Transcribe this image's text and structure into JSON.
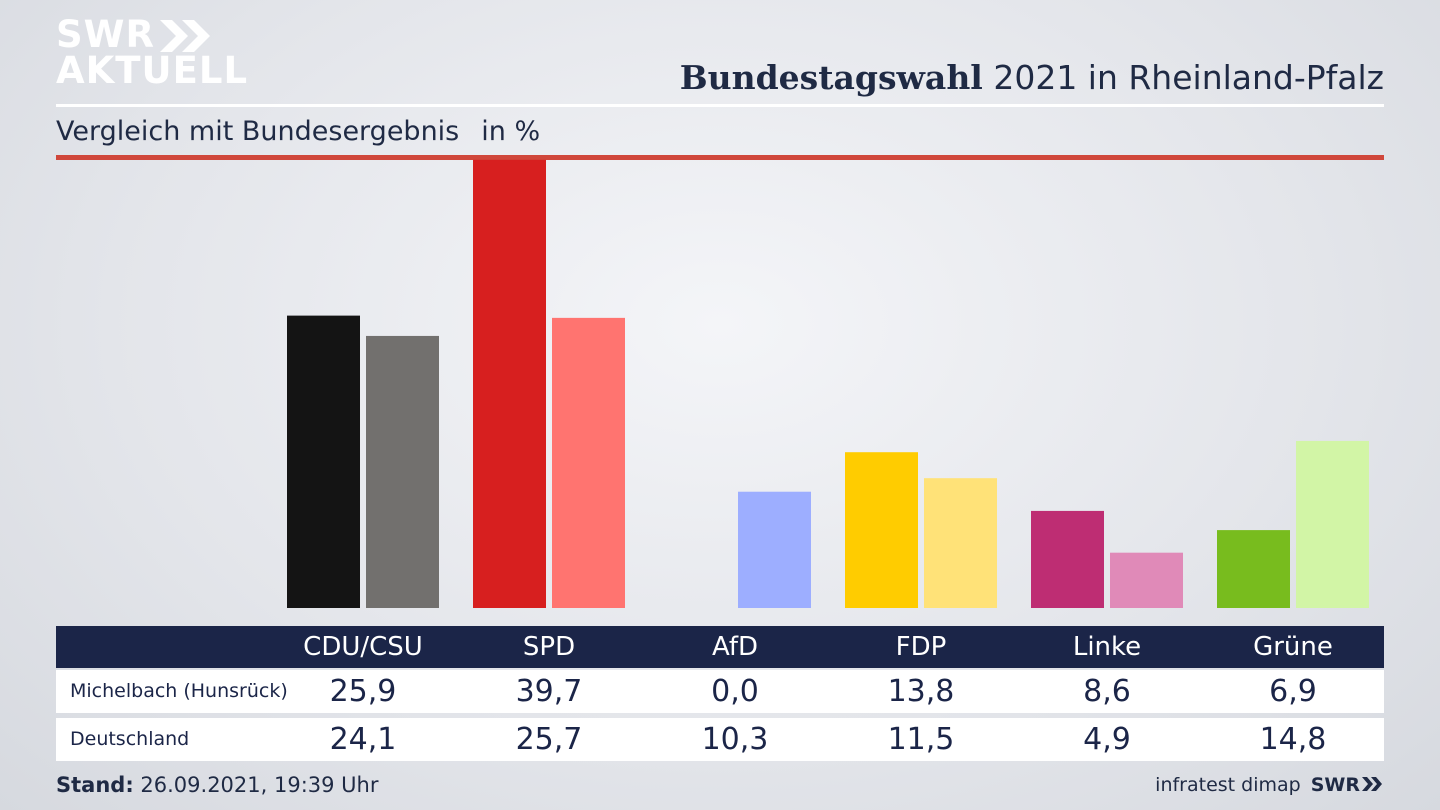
{
  "logo": {
    "line1": "SWR",
    "line2": "AKTUELL"
  },
  "header": {
    "title_bold": "Bundestagswahl",
    "title_rest": " 2021 in Rheinland-Pfalz",
    "subtitle": "Vergleich mit Bundesergebnis",
    "unit": "in %"
  },
  "chart_data": {
    "type": "bar",
    "categories": [
      "CDU/CSU",
      "SPD",
      "AfD",
      "FDP",
      "Linke",
      "Grüne"
    ],
    "series": [
      {
        "name": "Michelbach (Hunsrück)",
        "values": [
          25.9,
          39.7,
          0.0,
          13.8,
          8.6,
          6.9
        ],
        "colors": [
          "#141414",
          "#d71f1f",
          "#1a4bb5",
          "#ffcc00",
          "#be2d73",
          "#78bc1e"
        ]
      },
      {
        "name": "Deutschland",
        "values": [
          24.1,
          25.7,
          10.3,
          11.5,
          4.9,
          14.8
        ],
        "colors": [
          "#72706e",
          "#ff7470",
          "#9daeff",
          "#ffe278",
          "#e08ab8",
          "#d2f5a6"
        ]
      }
    ],
    "value_labels": [
      [
        "25,9",
        "39,7",
        "0,0",
        "13,8",
        "8,6",
        "6,9"
      ],
      [
        "24,1",
        "25,7",
        "10,3",
        "11,5",
        "4,9",
        "14,8"
      ]
    ],
    "ylim": [
      0,
      40
    ],
    "grid": false,
    "legend": "table-below"
  },
  "footer": {
    "stand_label": "Stand:",
    "stand_value": " 26.09.2021, 19:39 Uhr",
    "source": "infratest dimap",
    "brand": "SWR"
  },
  "colors": {
    "header_bg": "#1b2548",
    "accent_red": "#d0473b"
  }
}
